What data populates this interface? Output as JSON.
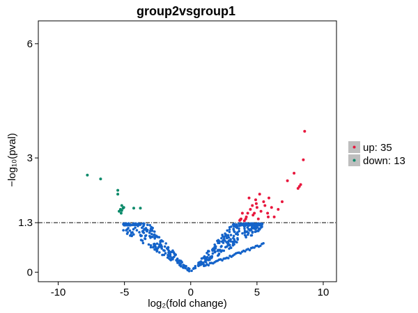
{
  "chart_data": {
    "type": "scatter",
    "title": "group2vsgroup1",
    "xlabel": "log₂(fold change)",
    "ylabel": "−log₁₀(pval)",
    "xlim": [
      -11.5,
      11
    ],
    "ylim": [
      -0.25,
      6.6
    ],
    "x_ticks": [
      -10,
      -5,
      0,
      5,
      10
    ],
    "x_tick_labels": [
      "-10",
      "-5",
      "0",
      "5",
      "10"
    ],
    "y_ticks": [
      0,
      1.3,
      3,
      6
    ],
    "y_tick_labels": [
      "0",
      "1.3",
      "3",
      "6"
    ],
    "threshold": 1.3,
    "threshold_style": "dash-dot",
    "grid": false,
    "legend_position": "right",
    "legend": [
      {
        "key": "up",
        "label": "up: 35"
      },
      {
        "key": "down",
        "label": "down: 13"
      }
    ],
    "colors": {
      "up": "#e8173d",
      "down": "#0b8a6a",
      "nonsig": "#1463c9",
      "legend_key_bg": "#bebebe"
    },
    "series": [
      {
        "key": "up",
        "points": [
          [
            8.6,
            3.7
          ],
          [
            8.5,
            2.95
          ],
          [
            8.3,
            2.3
          ],
          [
            8.2,
            2.25
          ],
          [
            8.1,
            2.2
          ],
          [
            7.8,
            2.6
          ],
          [
            7.3,
            2.4
          ],
          [
            6.9,
            1.85
          ],
          [
            6.6,
            1.65
          ],
          [
            6.3,
            1.45
          ],
          [
            6.1,
            1.7
          ],
          [
            5.9,
            1.95
          ],
          [
            5.8,
            1.55
          ],
          [
            5.6,
            1.75
          ],
          [
            5.5,
            1.85
          ],
          [
            5.3,
            1.6
          ],
          [
            5.2,
            2.05
          ],
          [
            5.1,
            1.4
          ],
          [
            5.0,
            1.7
          ],
          [
            4.95,
            1.8
          ],
          [
            4.9,
            1.9
          ],
          [
            4.8,
            1.55
          ],
          [
            4.7,
            1.5
          ],
          [
            4.65,
            1.75
          ],
          [
            4.5,
            1.65
          ],
          [
            4.4,
            1.95
          ],
          [
            4.3,
            1.55
          ],
          [
            4.2,
            1.45
          ],
          [
            4.15,
            1.4
          ],
          [
            4.05,
            1.35
          ],
          [
            3.9,
            1.55
          ],
          [
            3.8,
            1.4
          ],
          [
            3.75,
            1.38
          ],
          [
            3.7,
            1.36
          ],
          [
            5.85,
            1.45
          ]
        ]
      },
      {
        "key": "down",
        "points": [
          [
            -7.8,
            2.55
          ],
          [
            -6.8,
            2.45
          ],
          [
            -5.5,
            2.15
          ],
          [
            -5.5,
            2.05
          ],
          [
            -5.3,
            1.65
          ],
          [
            -5.2,
            1.75
          ],
          [
            -5.05,
            1.7
          ],
          [
            -4.3,
            1.68
          ],
          [
            -3.8,
            1.68
          ],
          [
            -5.4,
            1.6
          ],
          [
            -5.2,
            1.62
          ],
          [
            -5.1,
            1.68
          ],
          [
            -5.25,
            1.55
          ]
        ]
      }
    ]
  }
}
